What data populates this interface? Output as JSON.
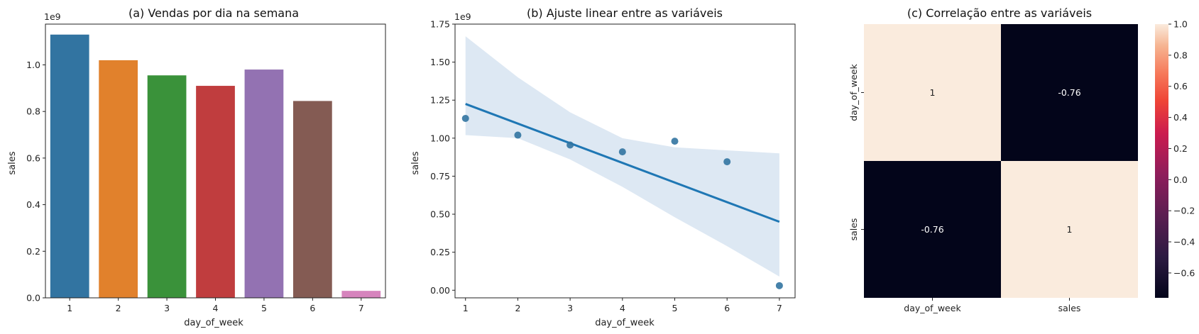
{
  "chart_data": [
    {
      "type": "bar",
      "title": "(a) Vendas por dia na semana",
      "xlabel": "day_of_week",
      "ylabel": "sales",
      "offset_label": "1e9",
      "categories": [
        "1",
        "2",
        "3",
        "4",
        "5",
        "6",
        "7"
      ],
      "values": [
        1.13,
        1.02,
        0.955,
        0.91,
        0.98,
        0.845,
        0.03
      ],
      "ylim": [
        0,
        1.175
      ],
      "yticks": [
        "0.0",
        "0.2",
        "0.4",
        "0.6",
        "0.8",
        "1.0"
      ],
      "colors": [
        "#3274a1",
        "#e1812c",
        "#3a923a",
        "#c03d3e",
        "#9372b2",
        "#845b53",
        "#d684bd"
      ]
    },
    {
      "type": "scatter",
      "title": "(b) Ajuste linear entre as variáveis",
      "xlabel": "day_of_week",
      "ylabel": "sales",
      "offset_label": "1e9",
      "x": [
        1,
        2,
        3,
        4,
        5,
        6,
        7
      ],
      "y": [
        1.13,
        1.02,
        0.955,
        0.91,
        0.98,
        0.845,
        0.03
      ],
      "regression": {
        "x": [
          1,
          7
        ],
        "y": [
          1.225,
          0.45
        ]
      },
      "confidence_band": {
        "x": [
          1,
          2,
          3,
          4,
          5,
          6,
          7
        ],
        "upper": [
          1.67,
          1.4,
          1.17,
          1.0,
          0.94,
          0.92,
          0.9
        ],
        "lower": [
          1.02,
          1.0,
          0.86,
          0.68,
          0.48,
          0.29,
          0.09
        ]
      },
      "xlim": [
        0.8,
        7.3
      ],
      "ylim": [
        -0.05,
        1.75
      ],
      "xticks": [
        "1",
        "2",
        "3",
        "4",
        "5",
        "6",
        "7"
      ],
      "yticks": [
        "0.00",
        "0.25",
        "0.50",
        "0.75",
        "1.00",
        "1.25",
        "1.50",
        "1.75"
      ],
      "point_color": "#3274a1",
      "line_color": "#1f77b4",
      "band_color": "#dde8f3"
    },
    {
      "type": "heatmap",
      "title": "(c) Correlação entre as variáveis",
      "rows": [
        "day_of_week",
        "sales"
      ],
      "cols": [
        "day_of_week",
        "sales"
      ],
      "values": [
        [
          1,
          -0.76
        ],
        [
          -0.76,
          1
        ]
      ],
      "annotations": [
        [
          "1",
          "-0.76"
        ],
        [
          "-0.76",
          "1"
        ]
      ],
      "colors": [
        [
          "#faebdd",
          "#03051a"
        ],
        [
          "#03051a",
          "#faebdd"
        ]
      ],
      "colorbar": {
        "range": [
          -0.76,
          1.0
        ],
        "ticks": [
          "1.0",
          "0.8",
          "0.6",
          "0.4",
          "0.2",
          "0.0",
          "−0.2",
          "−0.4",
          "−0.6"
        ]
      }
    }
  ]
}
